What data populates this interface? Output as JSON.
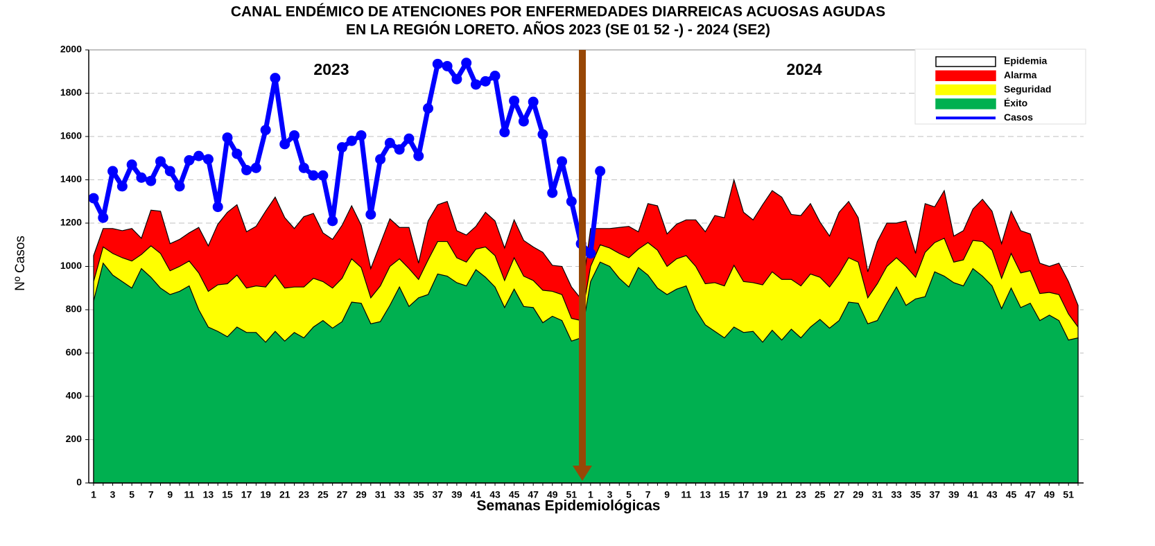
{
  "chart_data": {
    "type": "endemic-channel",
    "title": [
      "CANAL ENDÉMICO DE ATENCIONES POR ENFERMEDADES DIARREICAS ACUOSAS AGUDAS",
      "EN LA REGIÓN LORETO.  AÑOS 2023 (SE 01 52 -) - 2024 (SE2)"
    ],
    "y_label": "Nº Casos",
    "x_label": "Semanas Epidemiológicas",
    "annotations": [
      "2023",
      "2024"
    ],
    "ylim": [
      0,
      2000
    ],
    "yticks": [
      0,
      200,
      400,
      600,
      800,
      1000,
      1200,
      1400,
      1600,
      1800,
      2000
    ],
    "grid": true,
    "legend": "top-right",
    "categories": [
      "1",
      null,
      "3",
      null,
      "5",
      null,
      "7",
      null,
      "9",
      null,
      "11",
      null,
      "13",
      null,
      "15",
      null,
      "17",
      null,
      "19",
      null,
      "21",
      null,
      "23",
      null,
      "25",
      null,
      "27",
      null,
      "29",
      null,
      "31",
      null,
      "33",
      null,
      "35",
      null,
      "37",
      null,
      "39",
      null,
      "41",
      null,
      "43",
      null,
      "45",
      null,
      "47",
      null,
      "49",
      null,
      "51",
      null,
      "1",
      null,
      "3",
      null,
      "5",
      null,
      "7",
      null,
      "9",
      null,
      "11",
      null,
      "13",
      null,
      "15",
      null,
      "17",
      null,
      "19",
      null,
      "21",
      null,
      "23",
      null,
      "25",
      null,
      "27",
      null,
      "29",
      null,
      "31",
      null,
      "33",
      null,
      "35",
      null,
      "37",
      null,
      "39",
      null,
      "41",
      null,
      "43",
      null,
      "45",
      null,
      "47",
      null,
      "49",
      null,
      "51",
      null
    ],
    "series": [
      {
        "name": "Epidemia",
        "color": "#ffffff"
      },
      {
        "name": "Alarma",
        "color": "#ff0000",
        "values": [
          1050,
          1175,
          1175,
          1165,
          1175,
          1130,
          1260,
          1255,
          1105,
          1125,
          1155,
          1180,
          1095,
          1195,
          1250,
          1285,
          1160,
          1185,
          1255,
          1320,
          1225,
          1175,
          1230,
          1245,
          1155,
          1125,
          1190,
          1280,
          1190,
          990,
          1105,
          1220,
          1180,
          1180,
          1015,
          1210,
          1285,
          1300,
          1165,
          1145,
          1185,
          1250,
          1210,
          1085,
          1215,
          1120,
          1090,
          1065,
          1005,
          1000,
          905,
          850,
          1175,
          1175,
          1175,
          1180,
          1185,
          1160,
          1290,
          1280,
          1150,
          1195,
          1215,
          1215,
          1160,
          1235,
          1225,
          1400,
          1250,
          1215,
          1285,
          1350,
          1320,
          1240,
          1235,
          1290,
          1205,
          1140,
          1250,
          1300,
          1225,
          975,
          1115,
          1200,
          1200,
          1210,
          1060,
          1290,
          1275,
          1350,
          1140,
          1165,
          1265,
          1310,
          1255,
          1105,
          1255,
          1165,
          1150,
          1015,
          1000,
          1015,
          930,
          820
        ]
      },
      {
        "name": "Seguridad",
        "color": "#ffff00",
        "values": [
          930,
          1090,
          1060,
          1040,
          1025,
          1055,
          1095,
          1060,
          980,
          1000,
          1025,
          970,
          885,
          915,
          920,
          960,
          900,
          910,
          905,
          960,
          900,
          905,
          905,
          945,
          930,
          900,
          945,
          1035,
          995,
          855,
          910,
          1000,
          1035,
          990,
          940,
          1030,
          1115,
          1115,
          1040,
          1020,
          1080,
          1090,
          1050,
          935,
          1040,
          955,
          935,
          890,
          885,
          870,
          760,
          750,
          1000,
          1100,
          1085,
          1060,
          1040,
          1080,
          1110,
          1075,
          1000,
          1035,
          1050,
          1000,
          920,
          925,
          910,
          1005,
          930,
          925,
          915,
          975,
          940,
          940,
          910,
          965,
          950,
          905,
          965,
          1040,
          1020,
          855,
          920,
          1000,
          1040,
          1000,
          950,
          1065,
          1110,
          1130,
          1020,
          1030,
          1120,
          1115,
          1075,
          945,
          1060,
          970,
          980,
          875,
          880,
          870,
          780,
          720
        ]
      },
      {
        "name": "Éxito",
        "color": "#00b050",
        "values": [
          840,
          1015,
          960,
          930,
          900,
          990,
          950,
          900,
          870,
          885,
          910,
          800,
          720,
          700,
          675,
          720,
          695,
          695,
          650,
          700,
          655,
          695,
          670,
          720,
          750,
          715,
          745,
          835,
          830,
          735,
          745,
          820,
          905,
          815,
          855,
          870,
          965,
          955,
          925,
          910,
          985,
          950,
          905,
          810,
          895,
          815,
          810,
          740,
          770,
          750,
          655,
          670,
          930,
          1020,
          1000,
          945,
          905,
          995,
          960,
          900,
          870,
          895,
          910,
          800,
          730,
          700,
          670,
          720,
          695,
          700,
          650,
          705,
          660,
          710,
          670,
          720,
          755,
          715,
          750,
          835,
          830,
          735,
          750,
          830,
          905,
          820,
          850,
          860,
          975,
          955,
          925,
          910,
          990,
          955,
          910,
          805,
          900,
          810,
          830,
          750,
          775,
          750,
          660,
          670
        ]
      },
      {
        "name": "Casos",
        "color": "#0000ff",
        "values": [
          1315,
          1225,
          1440,
          1370,
          1470,
          1410,
          1395,
          1485,
          1440,
          1370,
          1490,
          1510,
          1495,
          1275,
          1595,
          1520,
          1445,
          1455,
          1630,
          1870,
          1565,
          1605,
          1455,
          1420,
          1420,
          1210,
          1550,
          1580,
          1605,
          1240,
          1495,
          1570,
          1540,
          1590,
          1510,
          1730,
          1935,
          1925,
          1865,
          1940,
          1840,
          1855,
          1880,
          1620,
          1765,
          1670,
          1760,
          1610,
          1340,
          1485,
          1300,
          1105,
          1060,
          1440,
          null,
          null,
          null,
          null,
          null,
          null,
          null,
          null,
          null,
          null,
          null,
          null,
          null,
          null,
          null,
          null,
          null,
          null,
          null,
          null,
          null,
          null,
          null,
          null,
          null,
          null,
          null,
          null,
          null,
          null,
          null,
          null,
          null,
          null,
          null,
          null,
          null,
          null,
          null,
          null,
          null,
          null,
          null,
          null,
          null,
          null,
          null,
          null,
          null,
          null
        ]
      }
    ]
  }
}
